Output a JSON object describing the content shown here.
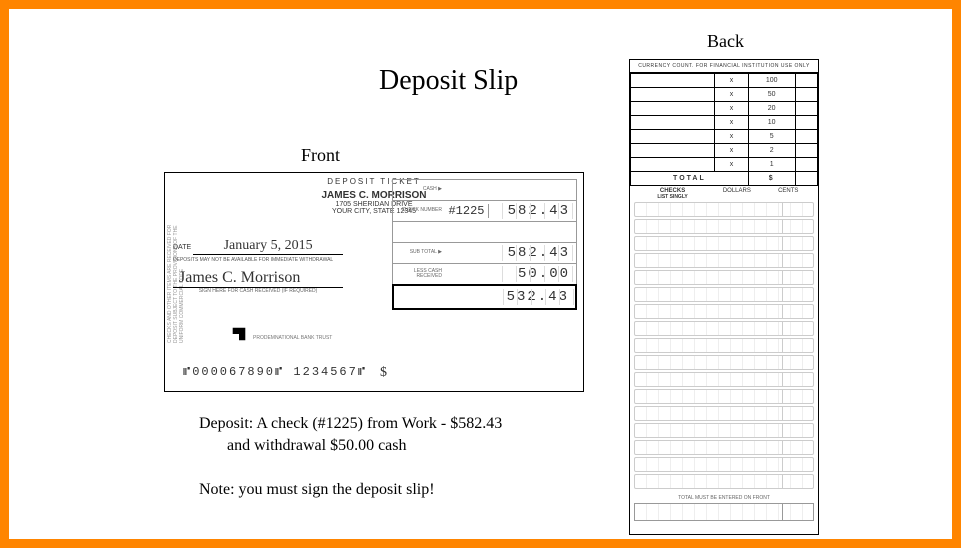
{
  "title": "Deposit Slip",
  "labels": {
    "front": "Front",
    "back": "Back"
  },
  "front": {
    "ticket_header": "DEPOSIT TICKET",
    "name": "JAMES C. MORRISON",
    "address1": "1705 SHERIDAN DRIVE",
    "address2": "YOUR CITY, STATE  12345",
    "date_label": "DATE",
    "date_value": "January 5, 2015",
    "fine_print": "DEPOSITS MAY NOT BE AVAILABLE FOR IMMEDIATE WITHDRAWAL",
    "signature": "James C. Morrison",
    "sig_fine": "SIGN HERE FOR CASH RECEIVED (IF REQUIRED)",
    "logo_fine": "PRODEMNATIONAL BANK TRUST",
    "micr": "⑈000067890⑈ 1234567⑈",
    "vert_fine": "CHECKS AND OTHER ITEMS ARE RECEIVED FOR DEPOSIT SUBJECT TO THE PROVISIONS OF THE UNIFORM COMMERCIAL CODE",
    "row_labels": {
      "cash": "CASH ▶",
      "check_num": "CHECK\nNUMBER",
      "subtotal": "SUB TOTAL ▶",
      "less": "LESS CASH\nRECEIVED",
      "net": "$"
    },
    "check_number": "#1225",
    "amounts": {
      "cash": "",
      "check1": "582.43",
      "check2": "",
      "subtotal": "582.43",
      "less_cash": "50.00",
      "net": "532.43"
    }
  },
  "back": {
    "header": "CURRENCY COUNT. FOR FINANCIAL INSTITUTION USE ONLY",
    "denoms": [
      "100",
      "50",
      "20",
      "10",
      "5",
      "2",
      "1"
    ],
    "qty": [
      "",
      "",
      "",
      "",
      "",
      "",
      ""
    ],
    "total_label": "TOTAL",
    "total_prefix": "$",
    "checks_header": {
      "main": "CHECKS",
      "sub": "LIST SINGLY",
      "col_dollars": "DOLLARS",
      "col_cents": "CENTS"
    },
    "check_row_count": 17,
    "total_text": "TOTAL\nMUST BE ENTERED\nON FRONT"
  },
  "captions": {
    "line1": "Deposit: A check (#1225) from Work - $582.43",
    "line2": "and withdrawal $50.00 cash",
    "line3": "Note: you must sign the deposit slip!"
  },
  "colors": {
    "border": "#ff8500",
    "ink": "#000000",
    "rule": "#999999"
  }
}
